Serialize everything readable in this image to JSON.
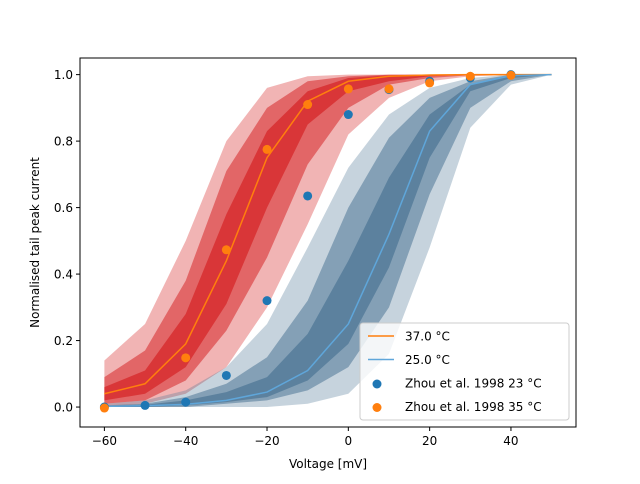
{
  "chart_data": {
    "type": "line",
    "xlabel": "Voltage [mV]",
    "ylabel": "Normalised tail peak current",
    "xlim": [
      -66,
      56
    ],
    "ylim": [
      -0.06,
      1.05
    ],
    "xticks": [
      -60,
      -40,
      -20,
      0,
      20,
      40
    ],
    "xtick_labels": [
      "−60",
      "−40",
      "−20",
      "0",
      "20",
      "40"
    ],
    "yticks": [
      0.0,
      0.2,
      0.4,
      0.6,
      0.8,
      1.0
    ],
    "ytick_labels": [
      "0.0",
      "0.2",
      "0.4",
      "0.6",
      "0.8",
      "1.0"
    ],
    "grid": false,
    "legend_position": "lower-right",
    "bands": [
      {
        "series": "37.0 °C",
        "color": "#d62728",
        "x": [
          -60,
          -50,
          -40,
          -30,
          -20,
          -10,
          0,
          10,
          20,
          30,
          40,
          50
        ],
        "levels": [
          {
            "opacity": 0.35,
            "lower": [
              0.0,
              0.01,
              0.04,
              0.12,
              0.3,
              0.55,
              0.82,
              0.93,
              0.98,
              0.995,
              0.999,
              1.0
            ],
            "upper": [
              0.14,
              0.25,
              0.5,
              0.8,
              0.96,
              0.995,
              1.0,
              1.0,
              1.0,
              1.0,
              1.0,
              1.0
            ]
          },
          {
            "opacity": 0.55,
            "lower": [
              0.01,
              0.02,
              0.08,
              0.23,
              0.45,
              0.73,
              0.9,
              0.97,
              0.99,
              0.998,
              1.0,
              1.0
            ],
            "upper": [
              0.09,
              0.17,
              0.38,
              0.71,
              0.9,
              0.98,
              0.995,
              1.0,
              1.0,
              1.0,
              1.0,
              1.0
            ]
          },
          {
            "opacity": 0.75,
            "lower": [
              0.02,
              0.04,
              0.12,
              0.31,
              0.6,
              0.85,
              0.95,
              0.98,
              0.995,
              1.0,
              1.0,
              1.0
            ],
            "upper": [
              0.06,
              0.11,
              0.28,
              0.58,
              0.83,
              0.95,
              0.99,
              0.998,
              1.0,
              1.0,
              1.0,
              1.0
            ]
          }
        ]
      },
      {
        "series": "25.0 °C",
        "color": "#4f7795",
        "x": [
          -60,
          -50,
          -40,
          -30,
          -20,
          -10,
          0,
          10,
          20,
          30,
          40,
          50
        ],
        "levels": [
          {
            "opacity": 0.32,
            "lower": [
              0.0,
              0.0,
              0.0,
              0.0,
              0.0,
              0.01,
              0.04,
              0.16,
              0.48,
              0.84,
              0.97,
              1.0
            ],
            "upper": [
              0.01,
              0.02,
              0.05,
              0.12,
              0.25,
              0.48,
              0.72,
              0.88,
              0.96,
              0.99,
              1.0,
              1.0
            ]
          },
          {
            "opacity": 0.55,
            "lower": [
              0.0,
              0.0,
              0.0,
              0.01,
              0.02,
              0.05,
              0.12,
              0.3,
              0.64,
              0.9,
              0.98,
              1.0
            ],
            "upper": [
              0.005,
              0.01,
              0.03,
              0.07,
              0.15,
              0.32,
              0.6,
              0.81,
              0.93,
              0.98,
              1.0,
              1.0
            ]
          },
          {
            "opacity": 0.75,
            "lower": [
              0.0,
              0.0,
              0.005,
              0.015,
              0.03,
              0.08,
              0.19,
              0.42,
              0.75,
              0.95,
              0.99,
              1.0
            ],
            "upper": [
              0.004,
              0.007,
              0.02,
              0.045,
              0.09,
              0.22,
              0.44,
              0.69,
              0.88,
              0.97,
              0.995,
              1.0
            ]
          }
        ]
      }
    ],
    "series": [
      {
        "name": "37.0 °C",
        "kind": "line",
        "color": "#ff7f0e",
        "x": [
          -60,
          -50,
          -40,
          -30,
          -20,
          -10,
          0,
          10,
          20,
          30,
          40,
          50
        ],
        "y": [
          0.04,
          0.07,
          0.19,
          0.44,
          0.75,
          0.92,
          0.98,
          0.995,
          0.999,
          1.0,
          1.0,
          1.0
        ]
      },
      {
        "name": "25.0 °C",
        "kind": "line",
        "color": "#5fa6da",
        "x": [
          -60,
          -50,
          -40,
          -30,
          -20,
          -10,
          0,
          10,
          20,
          30,
          40,
          50
        ],
        "y": [
          0.002,
          0.004,
          0.008,
          0.02,
          0.045,
          0.11,
          0.25,
          0.52,
          0.83,
          0.97,
          0.997,
          1.0
        ]
      },
      {
        "name": "Zhou et al. 1998 23 °C",
        "kind": "scatter",
        "color": "#1f77b4",
        "x": [
          -60,
          -50,
          -40,
          -30,
          -20,
          -10,
          0,
          10,
          20,
          30,
          40
        ],
        "y": [
          0.0,
          0.005,
          0.015,
          0.095,
          0.32,
          0.635,
          0.88,
          0.955,
          0.98,
          0.99,
          1.0
        ]
      },
      {
        "name": "Zhou et al. 1998 35 °C",
        "kind": "scatter",
        "color": "#ff7f0e",
        "x": [
          -60,
          -40,
          -30,
          -20,
          -10,
          0,
          10,
          20,
          30,
          40
        ],
        "y": [
          -0.003,
          0.148,
          0.473,
          0.775,
          0.91,
          0.957,
          0.957,
          0.975,
          0.995,
          0.998
        ]
      }
    ],
    "legend": [
      {
        "label": "37.0 °C",
        "marker": "line",
        "color": "#ff7f0e"
      },
      {
        "label": "25.0 °C",
        "marker": "line",
        "color": "#5fa6da"
      },
      {
        "label": "Zhou et al. 1998 23 °C",
        "marker": "dot",
        "color": "#1f77b4"
      },
      {
        "label": "Zhou et al. 1998 35 °C",
        "marker": "dot",
        "color": "#ff7f0e"
      }
    ]
  }
}
